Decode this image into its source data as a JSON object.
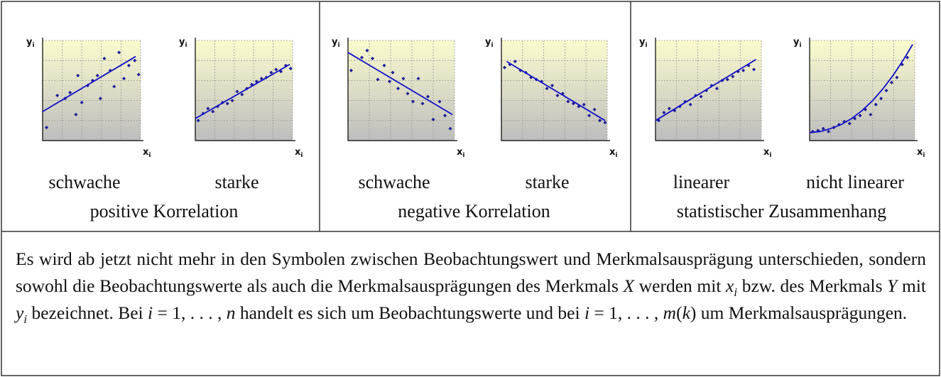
{
  "axis_labels": {
    "x": "x",
    "y": "y",
    "sub": "i"
  },
  "xlim": [
    0,
    10
  ],
  "ylim": [
    0,
    10
  ],
  "xticks": [
    0,
    2,
    4,
    6,
    8,
    10
  ],
  "yticks": [
    0,
    2,
    4,
    6,
    8,
    10
  ],
  "dot_color": "#1a1a9a",
  "line_color": "#1010c8",
  "panels": [
    {
      "caption": "positive Korrelation",
      "plots": [
        {
          "type": "scatter",
          "label": "schwache",
          "x": [
            0.4,
            1.5,
            2.3,
            2.8,
            3.4,
            3.6,
            4.0,
            4.6,
            5.1,
            5.6,
            5.9,
            6.3,
            6.9,
            7.3,
            7.8,
            8.3,
            8.8,
            9.4,
            9.8
          ],
          "y": [
            1.3,
            4.5,
            4.2,
            4.8,
            2.6,
            6.5,
            3.8,
            5.5,
            6.0,
            6.5,
            4.2,
            8.2,
            7.0,
            5.4,
            8.8,
            6.2,
            7.5,
            8.0,
            6.6
          ],
          "line": {
            "x": [
              0,
              9.5
            ],
            "y": [
              2.9,
              8.4
            ]
          }
        },
        {
          "type": "scatter",
          "label": "starke",
          "x": [
            0.3,
            0.8,
            1.3,
            1.8,
            2.3,
            2.8,
            3.3,
            3.8,
            4.3,
            4.8,
            5.3,
            5.8,
            6.3,
            6.8,
            7.3,
            7.8,
            8.3,
            8.8,
            9.3,
            9.8
          ],
          "y": [
            2.0,
            2.7,
            3.2,
            2.9,
            3.4,
            3.8,
            3.7,
            4.0,
            4.9,
            4.6,
            5.2,
            5.6,
            5.9,
            6.2,
            6.3,
            6.8,
            7.1,
            6.9,
            7.5,
            7.2
          ],
          "line": {
            "x": [
              0,
              9.7
            ],
            "y": [
              2.2,
              7.6
            ]
          }
        }
      ]
    },
    {
      "caption": "negative Korrelation",
      "plots": [
        {
          "type": "scatter",
          "label": "schwache",
          "x": [
            0.3,
            1.3,
            1.8,
            2.3,
            2.8,
            3.4,
            3.9,
            4.2,
            4.7,
            5.2,
            5.6,
            6.1,
            6.6,
            7.0,
            7.5,
            8.0,
            8.6,
            9.1,
            9.6
          ],
          "y": [
            7.0,
            8.3,
            9.0,
            8.2,
            6.1,
            7.5,
            5.9,
            6.8,
            5.2,
            6.2,
            4.7,
            3.9,
            6.2,
            3.7,
            4.4,
            2.1,
            3.9,
            2.5,
            1.2
          ],
          "line": {
            "x": [
              0,
              9.8
            ],
            "y": [
              8.8,
              2.6
            ]
          }
        },
        {
          "type": "scatter",
          "label": "starke",
          "x": [
            0.3,
            0.8,
            1.3,
            1.8,
            2.3,
            2.8,
            3.3,
            3.8,
            4.3,
            4.8,
            5.3,
            5.8,
            6.3,
            6.8,
            7.3,
            7.8,
            8.3,
            8.8,
            9.3,
            9.8
          ],
          "y": [
            7.3,
            7.6,
            7.9,
            7.0,
            6.8,
            6.3,
            6.1,
            5.9,
            5.2,
            5.5,
            4.5,
            4.7,
            3.9,
            3.7,
            3.4,
            3.6,
            2.5,
            3.1,
            2.0,
            1.8
          ],
          "line": {
            "x": [
              0.5,
              9.8
            ],
            "y": [
              7.9,
              2.0
            ]
          }
        }
      ]
    },
    {
      "caption": "statistischer Zusammenhang",
      "plots": [
        {
          "type": "scatter",
          "label": "linearer",
          "x": [
            0.3,
            0.8,
            1.3,
            1.8,
            2.3,
            2.8,
            3.3,
            3.8,
            4.3,
            4.8,
            5.3,
            5.8,
            6.3,
            6.8,
            7.3,
            7.8,
            8.3,
            8.8,
            9.3
          ],
          "y": [
            2.0,
            2.8,
            3.2,
            3.0,
            3.4,
            3.9,
            3.6,
            4.5,
            4.4,
            5.0,
            5.5,
            5.2,
            6.0,
            6.1,
            6.4,
            6.9,
            7.0,
            7.5,
            7.1
          ],
          "line": {
            "x": [
              0,
              9.5
            ],
            "y": [
              2.0,
              8.1
            ]
          }
        },
        {
          "type": "scatter",
          "label": "nicht linearer",
          "x": [
            0.3,
            0.8,
            1.3,
            1.8,
            2.3,
            2.8,
            3.3,
            3.8,
            4.3,
            4.8,
            5.3,
            5.8,
            6.3,
            6.8,
            7.3,
            7.8,
            8.3,
            8.8,
            9.3
          ],
          "y": [
            0.9,
            1.0,
            1.2,
            0.9,
            1.3,
            1.6,
            1.9,
            1.7,
            2.2,
            2.5,
            3.1,
            2.6,
            3.6,
            4.2,
            5.0,
            5.8,
            6.3,
            7.6,
            8.3
          ],
          "line": {
            "x": [
              0,
              1,
              2,
              3,
              4,
              5,
              6,
              7,
              8,
              9,
              9.8
            ],
            "y": [
              0.8,
              0.9,
              1.2,
              1.6,
              2.2,
              3.0,
              4.0,
              5.2,
              6.6,
              8.2,
              9.6
            ]
          }
        }
      ]
    }
  ],
  "paragraph": [
    {
      "text": "Es wird ab jetzt nicht mehr in den Symbolen zwischen Beobachtungswert und Merkmalsausprägung unterschieden, sondern sowohl die Beobachtungswerte als auch die Merkmalsausprägungen des Merkmals "
    },
    {
      "text": "X",
      "italic": true
    },
    {
      "text": " werden mit "
    },
    {
      "text": "x",
      "italic": true
    },
    {
      "text": "i",
      "italic": true,
      "sub": true
    },
    {
      "text": " bzw. des Merkmals "
    },
    {
      "text": "Y",
      "italic": true
    },
    {
      "text": " mit "
    },
    {
      "text": "y",
      "italic": true
    },
    {
      "text": "i",
      "italic": true,
      "sub": true
    },
    {
      "text": " bezeichnet. Bei "
    },
    {
      "text": "i",
      "italic": true
    },
    {
      "text": " = 1, . . . , "
    },
    {
      "text": "n",
      "italic": true
    },
    {
      "text": " handelt es sich um Beobachtungswerte und bei "
    },
    {
      "text": "i",
      "italic": true
    },
    {
      "text": " = 1, . . . , "
    },
    {
      "text": "m",
      "italic": true
    },
    {
      "text": "("
    },
    {
      "text": "k",
      "italic": true
    },
    {
      "text": ")"
    },
    {
      "text": " um Merkmalsausprägungen."
    }
  ]
}
